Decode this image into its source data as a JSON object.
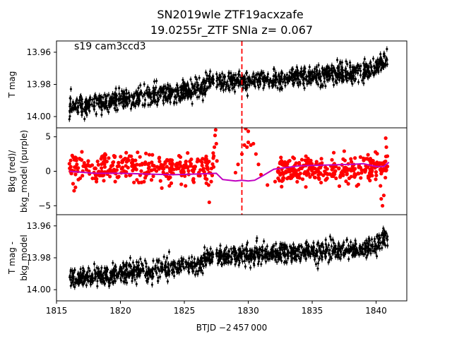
{
  "figure": {
    "title_line1": "SN2019wle  ZTF19acxzafe",
    "title_line2": "19.0255r_ZTF SNIa z= 0.067",
    "xlabel": "BTJD −2 457 000"
  },
  "chart_data": [
    {
      "type": "scatter",
      "panel": "top",
      "ylabel": "T mag",
      "annotation": "s19 cam3ccd3",
      "ylim": [
        14.007,
        13.953
      ],
      "yticks": [
        13.96,
        13.98,
        14.0
      ],
      "yticklabels": [
        "13.96",
        "13.98",
        "14.00"
      ],
      "xlim": [
        1815.0,
        1842.4
      ],
      "vline_x": 1829.5,
      "vline_color": "#ff0000",
      "point_color": "#000000",
      "series": [
        {
          "segments": [
            {
              "x_start": 1816.0,
              "x_end": 1827.3,
              "y_start": 13.9935,
              "y_end": 13.982,
              "y_end_rise": 13.9775,
              "rise_from": 1826.0,
              "scatter": 0.003,
              "count": 560
            },
            {
              "x_start": 1827.5,
              "x_end": 1840.9,
              "y_start": 13.979,
              "y_end": 13.971,
              "y_end_rise": 13.964,
              "rise_from": 1839.5,
              "scatter": 0.003,
              "count": 660
            }
          ]
        }
      ]
    },
    {
      "type": "scatter",
      "panel": "middle",
      "ylabel_line1": "Bkg (red)/",
      "ylabel_line2": "bkg_model (purple)",
      "ylim": [
        -6.3,
        6.3
      ],
      "yticks": [
        5,
        0,
        -5
      ],
      "yticklabels": [
        "5",
        "0",
        "−5"
      ],
      "xlim": [
        1815.0,
        1842.4
      ],
      "vline_x": 1829.5,
      "vline_color": "#ff0000",
      "series": [
        {
          "name": "Bkg",
          "color": "#ff0000",
          "segments": [
            {
              "x_start": 1816.0,
              "x_end": 1827.3,
              "y_level": 0.5,
              "scatter": 1.0,
              "count": 320
            },
            {
              "x_start": 1832.3,
              "x_end": 1840.9,
              "y_level": 0.2,
              "scatter": 1.0,
              "count": 300
            }
          ],
          "excursions": [
            {
              "x": 1826.9,
              "y": -2.0
            },
            {
              "x": 1826.95,
              "y": -4.5
            },
            {
              "x": 1827.1,
              "y": -1.5
            },
            {
              "x": 1827.3,
              "y": 2.2
            },
            {
              "x": 1827.35,
              "y": 3.5
            },
            {
              "x": 1827.4,
              "y": 5.2
            },
            {
              "x": 1827.45,
              "y": 6.0
            },
            {
              "x": 1827.5,
              "y": 4.0
            },
            {
              "x": 1827.55,
              "y": 1.5
            },
            {
              "x": 1829.0,
              "y": -0.2
            },
            {
              "x": 1829.2,
              "y": 1.0
            },
            {
              "x": 1829.5,
              "y": 2.5
            },
            {
              "x": 1829.7,
              "y": 3.8
            },
            {
              "x": 1829.9,
              "y": 3.5
            },
            {
              "x": 1830.0,
              "y": 4.2
            },
            {
              "x": 1830.2,
              "y": 3.8
            },
            {
              "x": 1830.4,
              "y": 4.0
            },
            {
              "x": 1830.6,
              "y": 2.5
            },
            {
              "x": 1830.8,
              "y": 1.0
            },
            {
              "x": 1831.0,
              "y": -0.5
            },
            {
              "x": 1831.5,
              "y": -2.0
            },
            {
              "x": 1832.1,
              "y": -1.5
            },
            {
              "x": 1830.0,
              "y": 5.8
            },
            {
              "x": 1829.8,
              "y": 6.2
            },
            {
              "x": 1840.4,
              "y": -4.0
            },
            {
              "x": 1840.5,
              "y": -5.0
            },
            {
              "x": 1840.6,
              "y": -3.5
            },
            {
              "x": 1840.75,
              "y": 4.8
            },
            {
              "x": 1840.8,
              "y": 3.5
            }
          ]
        },
        {
          "name": "bkg_model",
          "color": "#c000c0",
          "x": [
            1816.0,
            1818.0,
            1820.0,
            1822.0,
            1824.0,
            1826.0,
            1827.5,
            1828.0,
            1829.0,
            1829.5,
            1830.0,
            1830.5,
            1831.0,
            1832.0,
            1834.0,
            1836.0,
            1838.0,
            1839.0,
            1840.0,
            1840.6,
            1841.0
          ],
          "y": [
            0.0,
            -0.3,
            -0.3,
            -0.4,
            -0.5,
            -0.4,
            -0.3,
            -1.2,
            -1.4,
            -1.3,
            -1.4,
            -1.3,
            -0.8,
            0.3,
            0.8,
            0.9,
            1.0,
            1.1,
            0.7,
            0.7,
            1.3
          ]
        }
      ]
    },
    {
      "type": "scatter",
      "panel": "bottom",
      "ylabel_line1": "T mag -",
      "ylabel_line2": "bkg_model",
      "ylim": [
        14.007,
        13.953
      ],
      "yticks": [
        13.96,
        13.98,
        14.0
      ],
      "yticklabels": [
        "13.96",
        "13.98",
        "14.00"
      ],
      "xlim": [
        1815.0,
        1842.4
      ],
      "xticks": [
        1815,
        1820,
        1825,
        1830,
        1835,
        1840
      ],
      "xticklabels": [
        "1815",
        "1820",
        "1825",
        "1830",
        "1835",
        "1840"
      ],
      "point_color": "#000000",
      "series": [
        {
          "segments": [
            {
              "x_start": 1816.0,
              "x_end": 1827.3,
              "y_start": 13.9935,
              "y_end": 13.983,
              "y_end_rise": 13.978,
              "rise_from": 1826.0,
              "scatter": 0.003,
              "count": 560
            },
            {
              "x_start": 1827.5,
              "x_end": 1840.9,
              "y_start": 13.979,
              "y_end": 13.974,
              "y_end_rise": 13.966,
              "rise_from": 1839.5,
              "scatter": 0.003,
              "count": 660
            }
          ]
        }
      ]
    }
  ]
}
